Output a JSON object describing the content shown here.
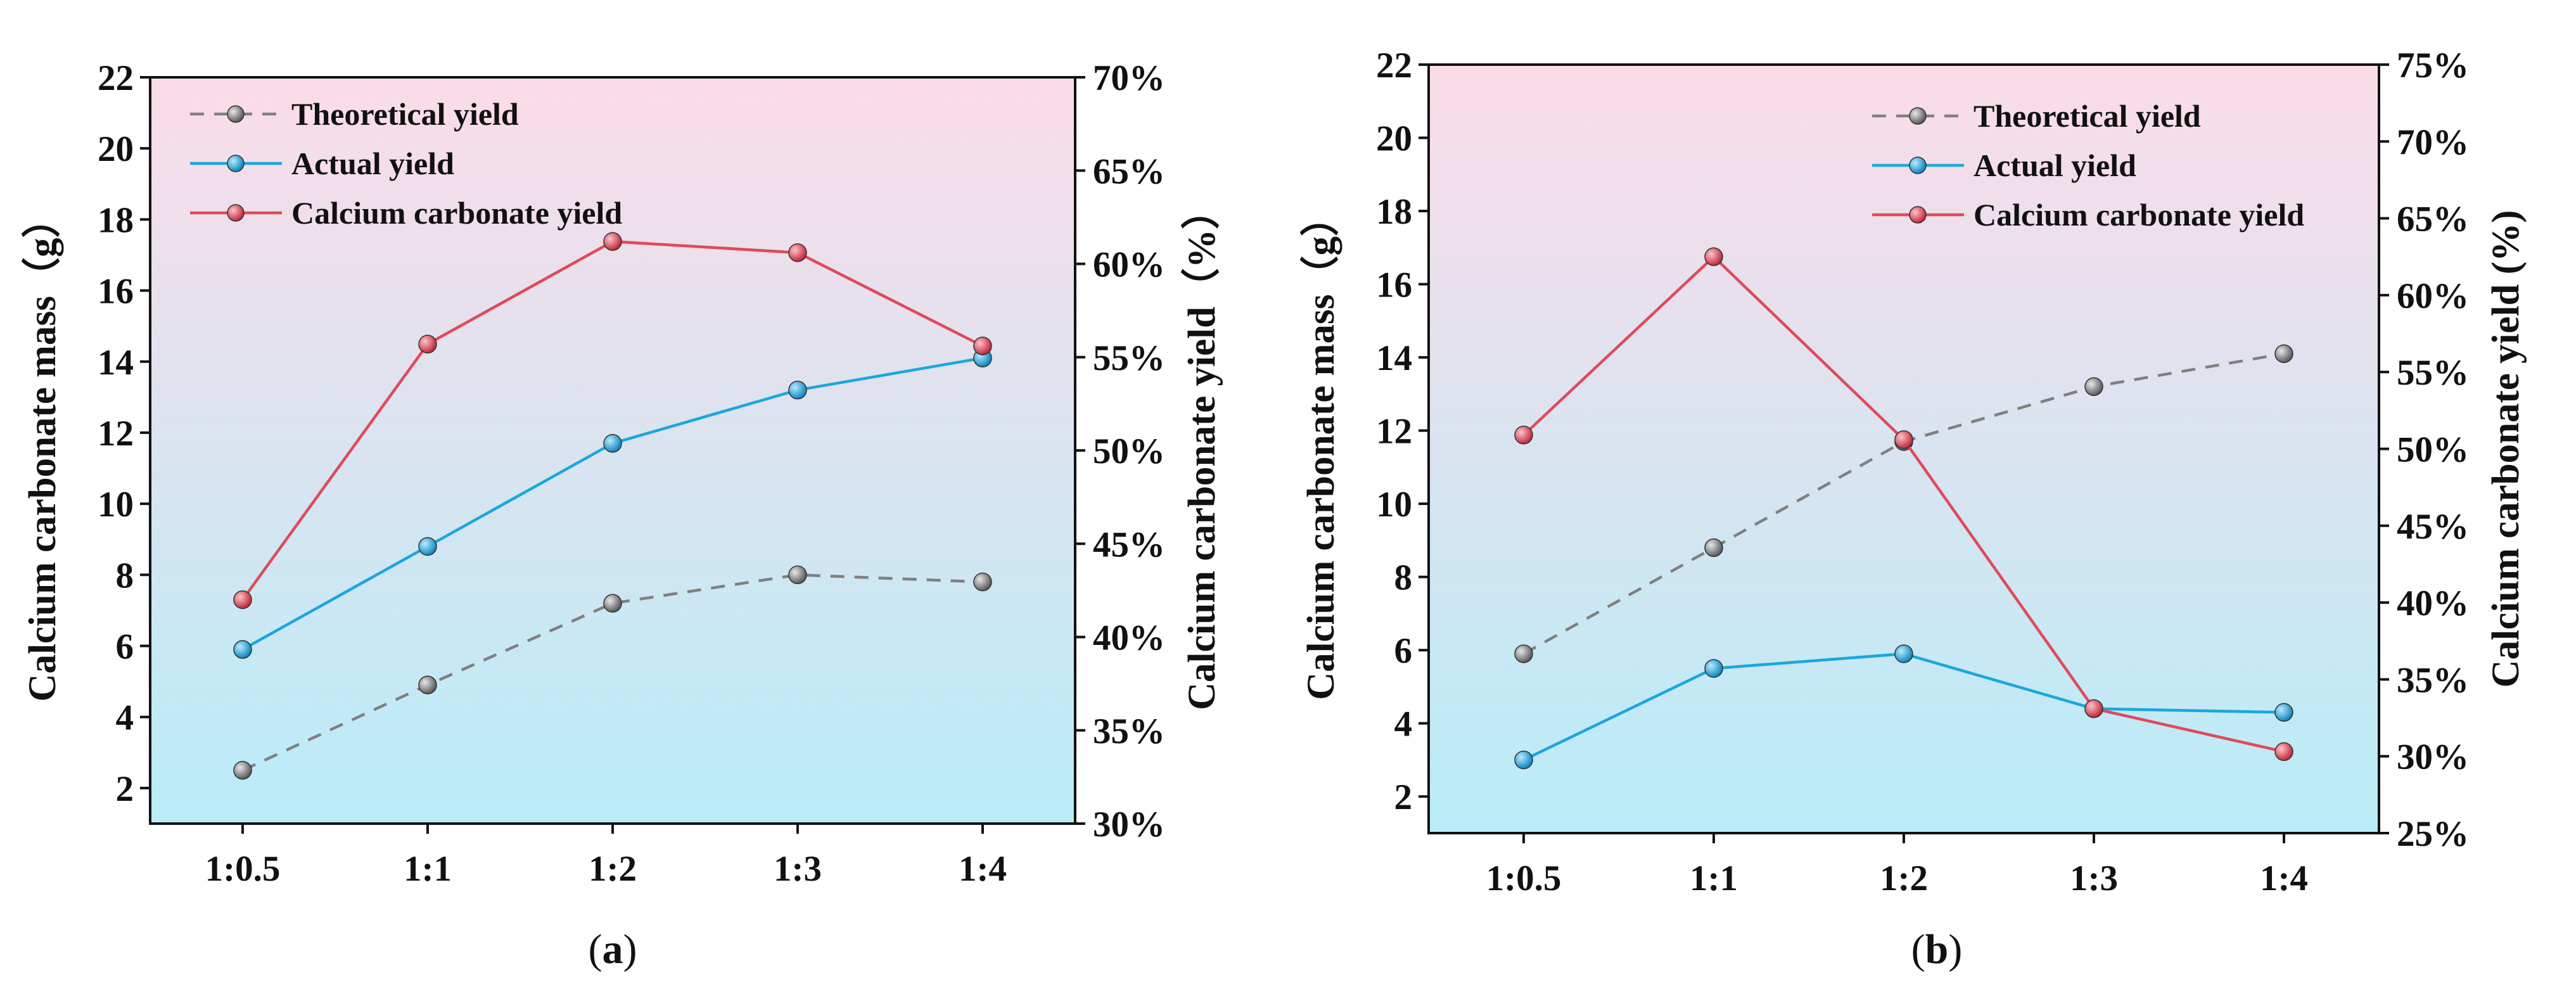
{
  "chart_data": [
    {
      "type": "line",
      "panel_label": "(a)",
      "panel_letter": "a",
      "categories": [
        "1:0.5",
        "1:1",
        "1:2",
        "1:3",
        "1:4"
      ],
      "y_left": {
        "label": "Calcium carbonate mass（g）",
        "range": [
          1,
          22
        ],
        "ticks": [
          2,
          4,
          6,
          8,
          10,
          12,
          14,
          16,
          18,
          20,
          22
        ]
      },
      "y_right": {
        "label": "Calcium carbonate yield（%）",
        "range": [
          30,
          70
        ],
        "ticks": [
          30,
          35,
          40,
          45,
          50,
          55,
          60,
          65,
          70
        ],
        "tick_suffix": "%"
      },
      "series": [
        {
          "name": "Theoretical yield",
          "axis": "left",
          "style": "dashed",
          "color": "#808080",
          "values": [
            2.5,
            4.9,
            7.2,
            8.0,
            7.8
          ]
        },
        {
          "name": "Actual yield",
          "axis": "left",
          "style": "solid",
          "color": "#1ba7dc",
          "values": [
            5.9,
            8.8,
            11.7,
            13.2,
            14.1
          ]
        },
        {
          "name": "Calcium carbonate yield",
          "axis": "right",
          "style": "solid",
          "color": "#e04a5a",
          "values": [
            42.0,
            55.7,
            61.2,
            60.6,
            55.6
          ]
        }
      ],
      "legend_position": "top-left",
      "background": {
        "top": "#fbdce8",
        "bottom": "#b8ecf8"
      }
    },
    {
      "type": "line",
      "panel_label": "(b)",
      "panel_letter": "b",
      "categories": [
        "1:0.5",
        "1:1",
        "1:2",
        "1:3",
        "1:4"
      ],
      "y_left": {
        "label": "Calcium carbonate mass（g）",
        "range": [
          1,
          22
        ],
        "ticks": [
          2,
          4,
          6,
          8,
          10,
          12,
          14,
          16,
          18,
          20,
          22
        ]
      },
      "y_right": {
        "label": "Calcium carbonate yield (%)",
        "range": [
          25,
          75
        ],
        "ticks": [
          25,
          30,
          35,
          40,
          45,
          50,
          55,
          60,
          65,
          70,
          75
        ],
        "tick_suffix": "%"
      },
      "series": [
        {
          "name": "Theoretical yield",
          "axis": "left",
          "style": "dashed",
          "color": "#808080",
          "values": [
            5.9,
            8.8,
            11.7,
            13.2,
            14.1
          ]
        },
        {
          "name": "Actual yield",
          "axis": "left",
          "style": "solid",
          "color": "#1ba7dc",
          "values": [
            3.0,
            5.5,
            5.9,
            4.4,
            4.3
          ]
        },
        {
          "name": "Calcium carbonate yield",
          "axis": "right",
          "style": "solid",
          "color": "#e04a5a",
          "values": [
            50.9,
            62.5,
            50.6,
            33.1,
            30.3
          ]
        }
      ],
      "legend_position": "top-right",
      "background": {
        "top": "#fbdce8",
        "bottom": "#b8ecf8"
      }
    }
  ]
}
